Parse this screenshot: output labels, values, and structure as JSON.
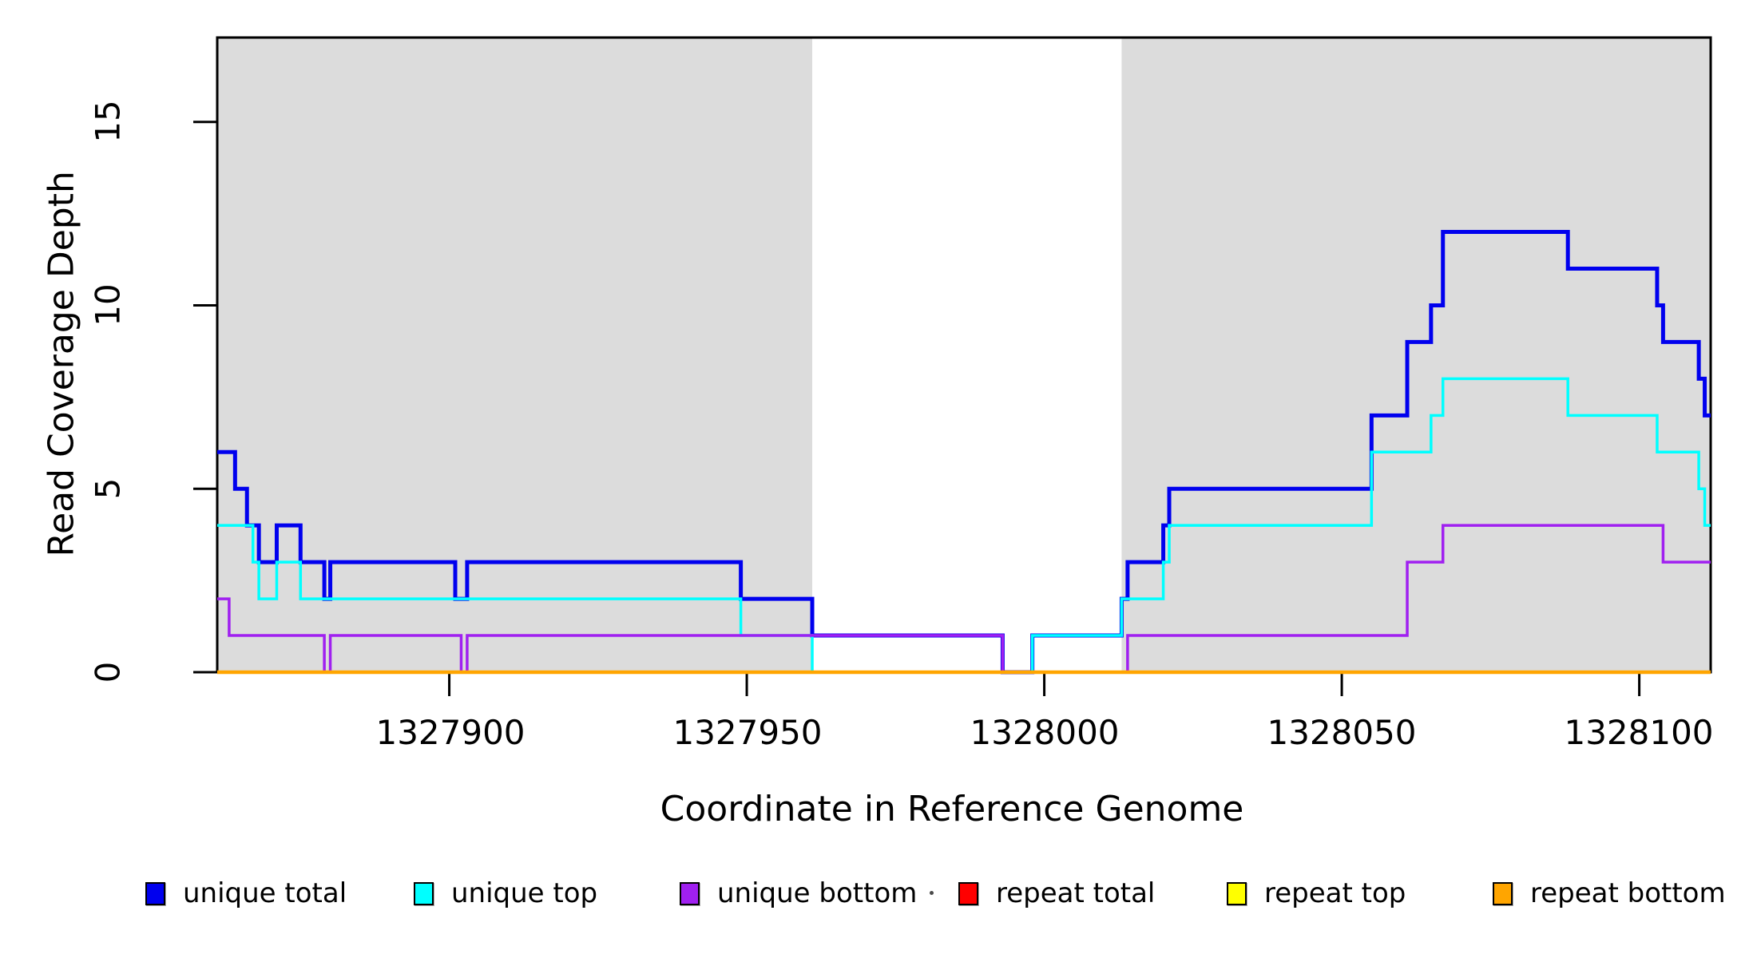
{
  "figure": {
    "background": "#ffffff",
    "plot_border_color": "#000000",
    "shade_color": "#DCDCDC"
  },
  "y_axis": {
    "title": "Read Coverage Depth",
    "tick_labels": [
      "0",
      "5",
      "10",
      "15"
    ],
    "tick_values": [
      0,
      5,
      10,
      15
    ]
  },
  "x_axis": {
    "title": "Coordinate in Reference Genome",
    "tick_labels": [
      "1327900",
      "1327950",
      "1328000",
      "1328050",
      "1328100"
    ],
    "tick_values": [
      1327900,
      1327950,
      1328000,
      1328050,
      1328100
    ]
  },
  "legend": [
    {
      "label": "unique total",
      "color": "#0000EE"
    },
    {
      "label": "unique top",
      "color": "#00FFFF"
    },
    {
      "label": "unique bottom",
      "color": "#A020F0"
    },
    {
      "label": "repeat total",
      "color": "#FF0000"
    },
    {
      "label": "repeat top",
      "color": "#FFFF00"
    },
    {
      "label": "repeat bottom",
      "color": "#FFA500"
    }
  ],
  "chart_data": {
    "type": "line",
    "step_style": "hv",
    "title": "",
    "xlabel": "Coordinate in Reference Genome",
    "ylabel": "Read Coverage Depth",
    "xlim": [
      1327861,
      1328112
    ],
    "ylim": [
      0,
      17.3
    ],
    "x_ticks": [
      1327900,
      1327950,
      1328000,
      1328050,
      1328100
    ],
    "y_ticks": [
      0,
      5,
      10,
      15
    ],
    "grid": false,
    "legend_position": "bottom-horizontal",
    "shaded_regions": [
      {
        "x1": 1327861,
        "x2": 1327961
      },
      {
        "x1": 1328013,
        "x2": 1328112
      }
    ],
    "series": [
      {
        "name": "unique total",
        "color": "#0000EE",
        "width": 5,
        "breakpoints": [
          [
            1327861,
            6
          ],
          [
            1327864,
            5
          ],
          [
            1327866,
            4
          ],
          [
            1327868,
            3
          ],
          [
            1327871,
            4
          ],
          [
            1327875,
            3
          ],
          [
            1327879,
            2
          ],
          [
            1327880,
            3
          ],
          [
            1327901,
            2
          ],
          [
            1327903,
            3
          ],
          [
            1327949,
            2
          ],
          [
            1327961,
            1
          ],
          [
            1327993,
            0
          ],
          [
            1327998,
            1
          ],
          [
            1328013,
            2
          ],
          [
            1328014,
            3
          ],
          [
            1328020,
            4
          ],
          [
            1328021,
            5
          ],
          [
            1328055,
            7
          ],
          [
            1328061,
            9
          ],
          [
            1328065,
            10
          ],
          [
            1328067,
            12
          ],
          [
            1328088,
            11
          ],
          [
            1328103,
            10
          ],
          [
            1328104,
            9
          ],
          [
            1328110,
            8
          ],
          [
            1328111,
            7
          ]
        ]
      },
      {
        "name": "unique top",
        "color": "#00FFFF",
        "width": 3.5,
        "breakpoints": [
          [
            1327861,
            4
          ],
          [
            1327867,
            3
          ],
          [
            1327868,
            2
          ],
          [
            1327871,
            3
          ],
          [
            1327875,
            2
          ],
          [
            1327949,
            1
          ],
          [
            1327961,
            0
          ],
          [
            1327998,
            1
          ],
          [
            1328013,
            2
          ],
          [
            1328020,
            3
          ],
          [
            1328021,
            4
          ],
          [
            1328055,
            6
          ],
          [
            1328065,
            7
          ],
          [
            1328067,
            8
          ],
          [
            1328088,
            7
          ],
          [
            1328103,
            6
          ],
          [
            1328110,
            5
          ],
          [
            1328111,
            4
          ]
        ]
      },
      {
        "name": "unique bottom",
        "color": "#A020F0",
        "width": 3.5,
        "breakpoints": [
          [
            1327861,
            2
          ],
          [
            1327863,
            1
          ],
          [
            1327879,
            0
          ],
          [
            1327880,
            1
          ],
          [
            1327902,
            0
          ],
          [
            1327903,
            1
          ],
          [
            1327993,
            0
          ],
          [
            1328014,
            1
          ],
          [
            1328061,
            3
          ],
          [
            1328067,
            4
          ],
          [
            1328104,
            3
          ]
        ]
      },
      {
        "name": "repeat total",
        "color": "#FF0000",
        "width": 3,
        "breakpoints": [
          [
            1327861,
            0
          ]
        ]
      },
      {
        "name": "repeat top",
        "color": "#FFFF00",
        "width": 3,
        "breakpoints": [
          [
            1327861,
            0
          ]
        ]
      },
      {
        "name": "repeat bottom",
        "color": "#FFA500",
        "width": 4.5,
        "breakpoints": [
          [
            1327861,
            0
          ]
        ]
      }
    ]
  }
}
